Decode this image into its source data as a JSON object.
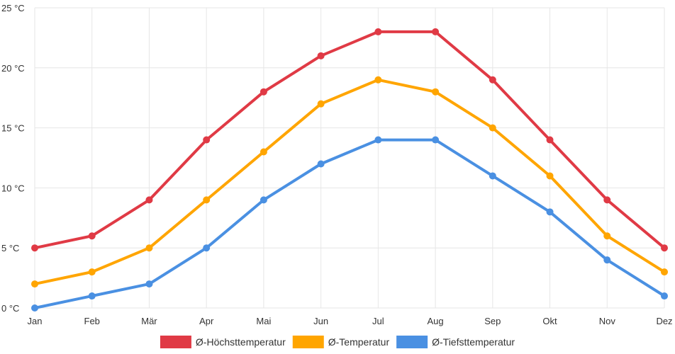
{
  "chart_data": {
    "type": "line",
    "title": "",
    "xlabel": "",
    "ylabel": "",
    "categories": [
      "Jan",
      "Feb",
      "Mär",
      "Apr",
      "Mai",
      "Jun",
      "Jul",
      "Aug",
      "Sep",
      "Okt",
      "Nov",
      "Dez"
    ],
    "ylim": [
      0,
      25
    ],
    "yticks": [
      0,
      5,
      10,
      15,
      20,
      25
    ],
    "ytick_labels": [
      "0 °C",
      "5 °C",
      "10 °C",
      "15 °C",
      "20 °C",
      "25 °C"
    ],
    "grid": true,
    "legend_position": "bottom",
    "series": [
      {
        "name": "Ø-Höchsttemperatur",
        "color": "#e03a45",
        "values": [
          5,
          6,
          9,
          14,
          18,
          21,
          23,
          23,
          19,
          14,
          9,
          5
        ]
      },
      {
        "name": "Ø-Temperatur",
        "color": "#ffa500",
        "values": [
          2,
          3,
          5,
          9,
          13,
          17,
          19,
          18,
          15,
          11,
          6,
          3
        ]
      },
      {
        "name": "Ø-Tiefsttemperatur",
        "color": "#4a90e2",
        "values": [
          0,
          1,
          2,
          5,
          9,
          12,
          14,
          14,
          11,
          8,
          4,
          1
        ]
      }
    ]
  }
}
